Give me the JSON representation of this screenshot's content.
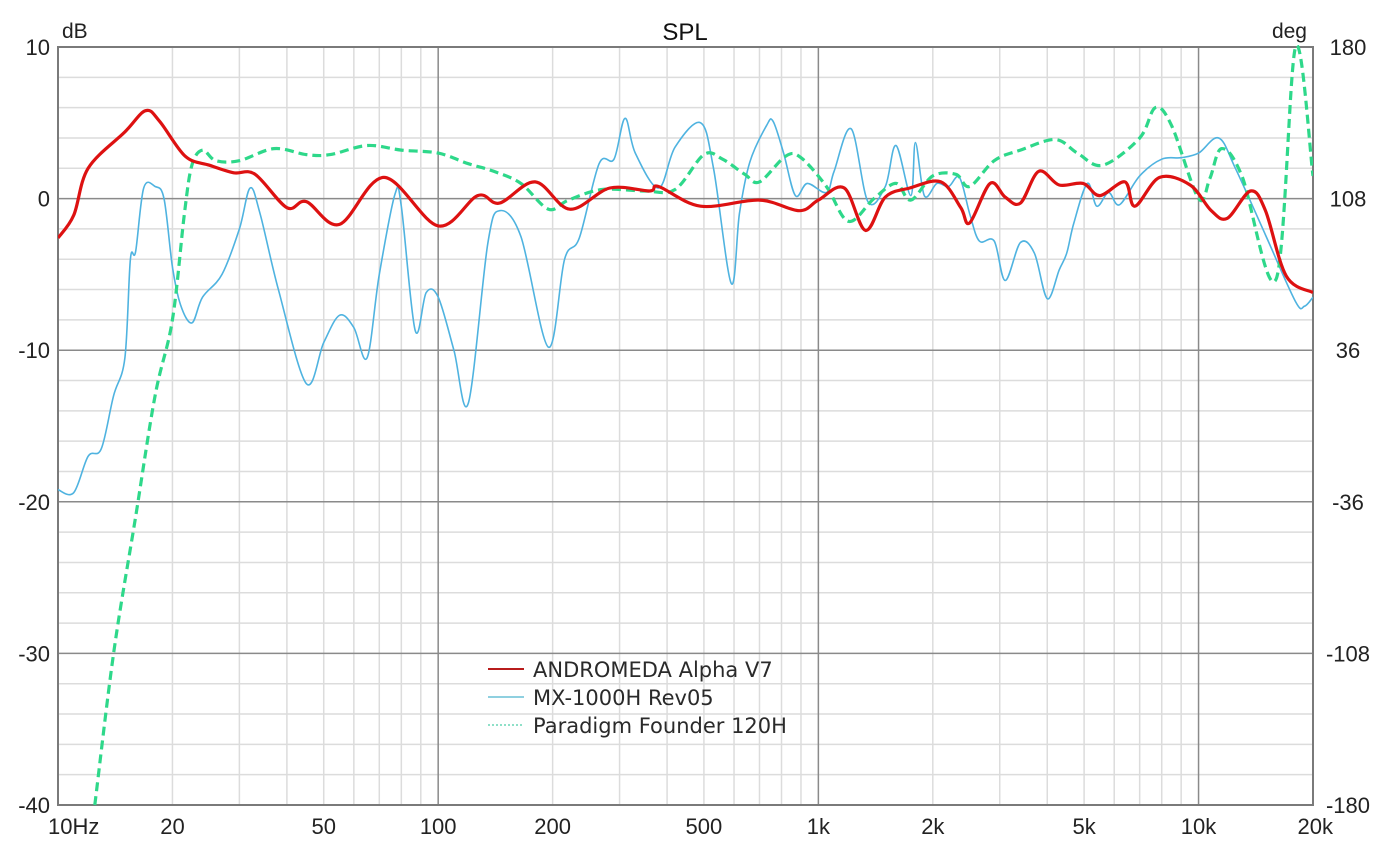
{
  "chart_data": {
    "type": "line",
    "title": "SPL",
    "xlabel": "",
    "ylabel": "dB",
    "y2label": "deg",
    "xscale": "log",
    "xlim": [
      10,
      20000
    ],
    "ylim": [
      -40,
      10
    ],
    "y2lim": [
      -180,
      180
    ],
    "grid": true,
    "legend_position": "bottom-center",
    "x_ticks": [
      {
        "value": 10,
        "label": "10Hz"
      },
      {
        "value": 20,
        "label": "20"
      },
      {
        "value": 50,
        "label": "50"
      },
      {
        "value": 100,
        "label": "100"
      },
      {
        "value": 200,
        "label": "200"
      },
      {
        "value": 500,
        "label": "500"
      },
      {
        "value": 1000,
        "label": "1k"
      },
      {
        "value": 2000,
        "label": "2k"
      },
      {
        "value": 5000,
        "label": "5k"
      },
      {
        "value": 10000,
        "label": "10k"
      },
      {
        "value": 20000,
        "label": "20k"
      }
    ],
    "y_ticks": [
      {
        "value": 10,
        "label": "10"
      },
      {
        "value": 0,
        "label": "0"
      },
      {
        "value": -10,
        "label": "-10"
      },
      {
        "value": -20,
        "label": "-20"
      },
      {
        "value": -30,
        "label": "-30"
      },
      {
        "value": -40,
        "label": "-40"
      }
    ],
    "y2_ticks": [
      {
        "value": 180,
        "label": "180"
      },
      {
        "value": 108,
        "label": "108"
      },
      {
        "value": 36,
        "label": "36"
      },
      {
        "value": -36,
        "label": "-36"
      },
      {
        "value": -108,
        "label": "-108"
      },
      {
        "value": -180,
        "label": "-180"
      }
    ],
    "series": [
      {
        "name": "ANDROMEDA Alpha V7",
        "color": "#dd1111",
        "style": "solid-thick",
        "points": [
          [
            10,
            -2.6
          ],
          [
            11,
            -1.1
          ],
          [
            12,
            2.0
          ],
          [
            15,
            4.4
          ],
          [
            17,
            5.8
          ],
          [
            18.5,
            5.1
          ],
          [
            21.6,
            2.8
          ],
          [
            25,
            2.2
          ],
          [
            29,
            1.7
          ],
          [
            33,
            1.6
          ],
          [
            40,
            -0.6
          ],
          [
            45,
            -0.2
          ],
          [
            55,
            -1.7
          ],
          [
            72,
            1.4
          ],
          [
            100,
            -1.8
          ],
          [
            127,
            0.2
          ],
          [
            145,
            -0.3
          ],
          [
            180,
            1.1
          ],
          [
            222,
            -0.7
          ],
          [
            283,
            0.7
          ],
          [
            360,
            0.5
          ],
          [
            380,
            0.8
          ],
          [
            490,
            -0.5
          ],
          [
            700,
            -0.1
          ],
          [
            890,
            -0.8
          ],
          [
            1000,
            -0.1
          ],
          [
            1170,
            0.7
          ],
          [
            1330,
            -2.1
          ],
          [
            1500,
            0.1
          ],
          [
            1740,
            0.7
          ],
          [
            2100,
            1.1
          ],
          [
            2370,
            -0.6
          ],
          [
            2500,
            -1.6
          ],
          [
            2830,
            1.0
          ],
          [
            3100,
            0.1
          ],
          [
            3400,
            -0.3
          ],
          [
            3800,
            1.8
          ],
          [
            4300,
            0.9
          ],
          [
            4970,
            1.0
          ],
          [
            5500,
            0.2
          ],
          [
            6400,
            1.1
          ],
          [
            6800,
            -0.5
          ],
          [
            7900,
            1.4
          ],
          [
            9500,
            0.9
          ],
          [
            10800,
            -0.8
          ],
          [
            11900,
            -1.3
          ],
          [
            13700,
            0.5
          ],
          [
            15000,
            -0.8
          ],
          [
            17000,
            -5.1
          ],
          [
            20000,
            -6.2
          ]
        ]
      },
      {
        "name": "MX-1000H Rev05",
        "color": "#4fb3e0",
        "style": "solid-thin",
        "points": [
          [
            10,
            -19.2
          ],
          [
            11,
            -19.4
          ],
          [
            12,
            -17
          ],
          [
            13,
            -16.5
          ],
          [
            14,
            -13
          ],
          [
            15,
            -10.5
          ],
          [
            15.5,
            -4
          ],
          [
            16,
            -3.5
          ],
          [
            16.8,
            0.7
          ],
          [
            18,
            0.8
          ],
          [
            19,
            0
          ],
          [
            20,
            -4.5
          ],
          [
            21,
            -7
          ],
          [
            22.5,
            -8.2
          ],
          [
            24,
            -6.5
          ],
          [
            27,
            -5
          ],
          [
            30,
            -2
          ],
          [
            32,
            0.7
          ],
          [
            34,
            -1
          ],
          [
            38,
            -6
          ],
          [
            45,
            -12.2
          ],
          [
            50,
            -9.5
          ],
          [
            55,
            -7.7
          ],
          [
            60,
            -8.5
          ],
          [
            65,
            -10.5
          ],
          [
            70,
            -5
          ],
          [
            77,
            0.3
          ],
          [
            80,
            -0.5
          ],
          [
            87,
            -8.7
          ],
          [
            93,
            -6.2
          ],
          [
            100,
            -6.5
          ],
          [
            110,
            -10
          ],
          [
            120,
            -13.5
          ],
          [
            135,
            -3
          ],
          [
            145,
            -0.8
          ],
          [
            165,
            -2.5
          ],
          [
            195,
            -9.8
          ],
          [
            215,
            -4
          ],
          [
            235,
            -2.6
          ],
          [
            265,
            2.3
          ],
          [
            290,
            2.6
          ],
          [
            310,
            5.3
          ],
          [
            330,
            3
          ],
          [
            380,
            0.7
          ],
          [
            420,
            3.4
          ],
          [
            490,
            5
          ],
          [
            530,
            2
          ],
          [
            590,
            -5.6
          ],
          [
            620,
            -1
          ],
          [
            660,
            2.4
          ],
          [
            730,
            4.8
          ],
          [
            760,
            5.1
          ],
          [
            810,
            3
          ],
          [
            870,
            0.2
          ],
          [
            935,
            1
          ],
          [
            1050,
            0.4
          ],
          [
            1100,
            1.8
          ],
          [
            1220,
            4.6
          ],
          [
            1350,
            -0.2
          ],
          [
            1500,
            0.8
          ],
          [
            1600,
            3.5
          ],
          [
            1750,
            0.2
          ],
          [
            1800,
            3.7
          ],
          [
            1900,
            0.2
          ],
          [
            2050,
            1.0
          ],
          [
            2200,
            0.8
          ],
          [
            2350,
            1.4
          ],
          [
            2500,
            -1
          ],
          [
            2650,
            -2.8
          ],
          [
            2900,
            -2.8
          ],
          [
            3100,
            -5.4
          ],
          [
            3400,
            -2.9
          ],
          [
            3700,
            -3.6
          ],
          [
            4000,
            -6.6
          ],
          [
            4300,
            -4.7
          ],
          [
            4500,
            -3.6
          ],
          [
            4700,
            -1.6
          ],
          [
            5100,
            1.0
          ],
          [
            5400,
            -0.5
          ],
          [
            5800,
            0.4
          ],
          [
            6200,
            -0.4
          ],
          [
            7000,
            1.5
          ],
          [
            8000,
            2.6
          ],
          [
            9000,
            2.7
          ],
          [
            10000,
            3.0
          ],
          [
            11300,
            4.0
          ],
          [
            12500,
            2.0
          ],
          [
            15000,
            -2.4
          ],
          [
            18000,
            -6.8
          ],
          [
            19000,
            -7.1
          ],
          [
            20000,
            -6.5
          ]
        ]
      },
      {
        "name": "Paradigm Founder 120H",
        "color": "#2ed88a",
        "style": "dashed",
        "points": [
          [
            12.5,
            -40
          ],
          [
            14,
            -30
          ],
          [
            16,
            -21
          ],
          [
            18,
            -13
          ],
          [
            20,
            -8
          ],
          [
            21.5,
            -1
          ],
          [
            22.5,
            2.2
          ],
          [
            24,
            3.2
          ],
          [
            26,
            2.5
          ],
          [
            30,
            2.5
          ],
          [
            37,
            3.3
          ],
          [
            45,
            2.9
          ],
          [
            52,
            2.9
          ],
          [
            65,
            3.5
          ],
          [
            80,
            3.2
          ],
          [
            100,
            3.0
          ],
          [
            120,
            2.3
          ],
          [
            140,
            1.8
          ],
          [
            165,
            1.0
          ],
          [
            195,
            -0.7
          ],
          [
            220,
            -0.1
          ],
          [
            270,
            0.6
          ],
          [
            350,
            0.5
          ],
          [
            420,
            0.6
          ],
          [
            500,
            2.9
          ],
          [
            560,
            2.6
          ],
          [
            640,
            1.6
          ],
          [
            700,
            1.1
          ],
          [
            820,
            2.8
          ],
          [
            900,
            2.7
          ],
          [
            1050,
            0.8
          ],
          [
            1200,
            -1.5
          ],
          [
            1400,
            0.0
          ],
          [
            1600,
            1.0
          ],
          [
            1750,
            -0.1
          ],
          [
            2000,
            1.5
          ],
          [
            2300,
            1.6
          ],
          [
            2500,
            0.8
          ],
          [
            2900,
            2.5
          ],
          [
            3400,
            3.2
          ],
          [
            4200,
            3.9
          ],
          [
            4800,
            3.0
          ],
          [
            5600,
            2.2
          ],
          [
            7000,
            4.0
          ],
          [
            7700,
            6.0
          ],
          [
            8500,
            4.8
          ],
          [
            10000,
            0.0
          ],
          [
            10700,
            1.3
          ],
          [
            11500,
            3.3
          ],
          [
            13000,
            1.5
          ],
          [
            16000,
            -5.3
          ],
          [
            18000,
            10.0
          ],
          [
            20000,
            1.5
          ]
        ]
      }
    ]
  }
}
